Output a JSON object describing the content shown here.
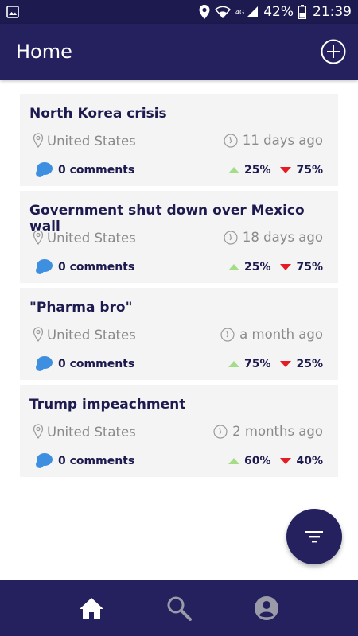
{
  "status_bar": {
    "network": "4G",
    "battery": "42%",
    "time": "21:39"
  },
  "app_bar": {
    "title": "Home"
  },
  "posts": [
    {
      "title": "North Korea crisis",
      "location": "United States",
      "time_ago": "11 days ago",
      "comments": "0 comments",
      "up": "25%",
      "down": "75%"
    },
    {
      "title": "Government shut down over Mexico wall",
      "location": "United States",
      "time_ago": "18 days ago",
      "comments": "0 comments",
      "up": "25%",
      "down": "75%"
    },
    {
      "title": "\"Pharma bro\"",
      "location": "United States",
      "time_ago": "a month ago",
      "comments": "0 comments",
      "up": "75%",
      "down": "25%"
    },
    {
      "title": "Trump impeachment",
      "location": "United States",
      "time_ago": "2 months ago",
      "comments": "0 comments",
      "up": "60%",
      "down": "40%"
    }
  ],
  "colors": {
    "primary": "#24215e",
    "up": "#a5dc86",
    "down": "#e51c23",
    "comment_icon": "#3f8fe0"
  }
}
